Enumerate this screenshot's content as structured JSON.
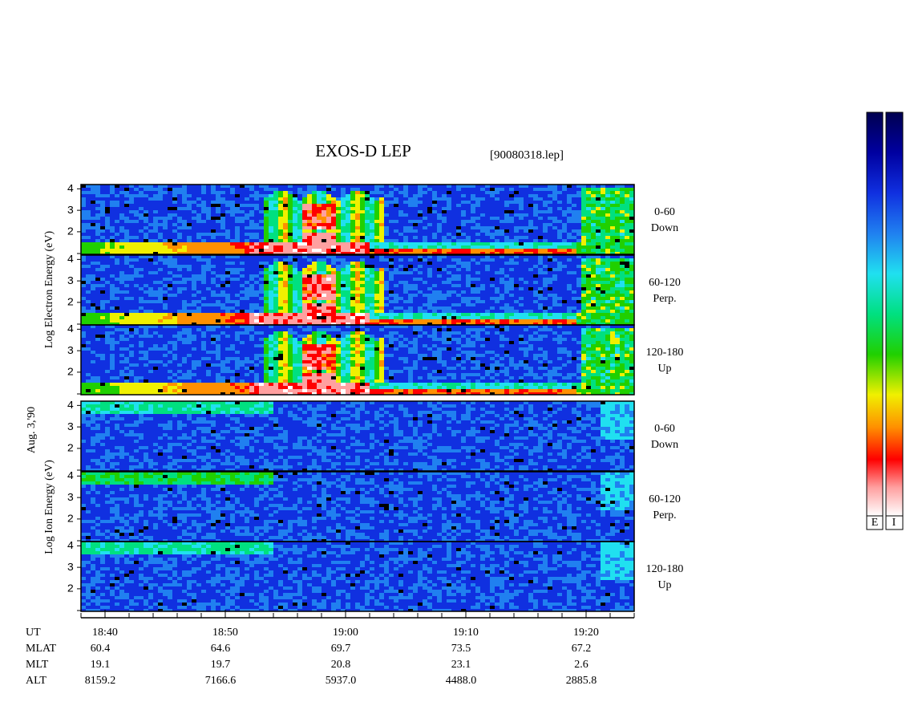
{
  "chart_data": {
    "type": "spectrogram",
    "title": "EXOS-D LEP",
    "file": "[90080318.lep]",
    "date": "Aug. 3,'90",
    "groups": [
      {
        "axis_label": "Log  Electron  Energy (eV)"
      },
      {
        "axis_label": "Log  Ion  Energy (eV)"
      }
    ],
    "panels": [
      {
        "group": 0,
        "lines": [
          "0-60",
          "Down"
        ]
      },
      {
        "group": 0,
        "lines": [
          "60-120",
          "Perp."
        ]
      },
      {
        "group": 0,
        "lines": [
          "120-180",
          "Up"
        ]
      },
      {
        "group": 1,
        "lines": [
          "0-60",
          "Down"
        ]
      },
      {
        "group": 1,
        "lines": [
          "60-120",
          "Perp."
        ]
      },
      {
        "group": 1,
        "lines": [
          "120-180",
          "Up"
        ]
      }
    ],
    "ylim": [
      0.95,
      4.2
    ],
    "yticks": [
      2,
      3,
      4
    ],
    "x_label": "UT",
    "xlim": [
      "18:38",
      "19:24"
    ],
    "x": [
      "18:40",
      "18:50",
      "19:00",
      "19:10",
      "19:20"
    ],
    "ephemeris": [
      {
        "name": "MLAT",
        "values": [
          60.4,
          64.6,
          69.7,
          73.5,
          67.2
        ]
      },
      {
        "name": "MLT",
        "values": [
          19.1,
          19.7,
          20.8,
          23.1,
          2.6
        ]
      },
      {
        "name": "ALT",
        "values": [
          8159.2,
          7166.6,
          5937.0,
          4488.0,
          2885.8
        ],
        "value_labels": [
          "8159.2",
          "7166.6",
          "5937.0",
          "4488.0",
          "2885.8"
        ]
      }
    ],
    "colorbar": {
      "labels": [
        "E",
        "I"
      ]
    }
  }
}
